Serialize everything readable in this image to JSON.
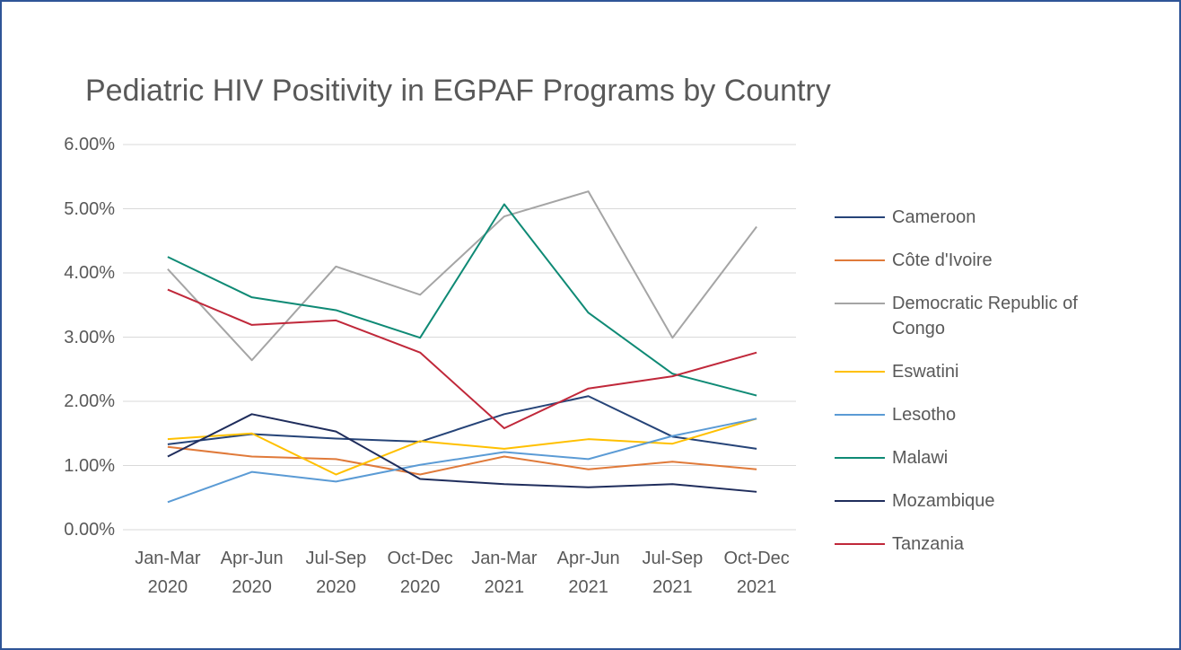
{
  "chart_data": {
    "type": "line",
    "title": "Pediatric HIV Positivity in EGPAF Programs by Country",
    "categories": [
      "Jan-Mar 2020",
      "Apr-Jun 2020",
      "Jul-Sep 2020",
      "Oct-Dec 2020",
      "Jan-Mar 2021",
      "Apr-Jun 2021",
      "Jul-Sep 2021",
      "Oct-Dec 2021"
    ],
    "series": [
      {
        "name": "Cameroon",
        "color": "#264478",
        "values": [
          1.33,
          1.49,
          1.42,
          1.37,
          1.8,
          2.08,
          1.45,
          1.26
        ]
      },
      {
        "name": "Côte d'Ivoire",
        "color": "#e07a3a",
        "values": [
          1.29,
          1.14,
          1.1,
          0.86,
          1.14,
          0.94,
          1.06,
          0.94
        ]
      },
      {
        "name": "Democratic Republic of Congo",
        "color": "#a5a5a5",
        "values": [
          4.06,
          2.64,
          4.1,
          3.66,
          4.88,
          5.27,
          2.99,
          4.72
        ]
      },
      {
        "name": "Eswatini",
        "color": "#ffc000",
        "values": [
          1.41,
          1.5,
          0.86,
          1.38,
          1.26,
          1.41,
          1.34,
          1.73
        ]
      },
      {
        "name": "Lesotho",
        "color": "#5b9bd5",
        "values": [
          0.43,
          0.9,
          0.75,
          1.01,
          1.21,
          1.1,
          1.46,
          1.73
        ]
      },
      {
        "name": "Malawi",
        "color": "#0f8a75",
        "values": [
          4.25,
          3.62,
          3.42,
          2.99,
          5.07,
          3.38,
          2.43,
          2.09
        ]
      },
      {
        "name": "Mozambique",
        "color": "#1f2d5c",
        "values": [
          1.14,
          1.8,
          1.53,
          0.79,
          0.71,
          0.66,
          0.71,
          0.59
        ]
      },
      {
        "name": "Tanzania",
        "color": "#c0283a",
        "values": [
          3.74,
          3.19,
          3.26,
          2.76,
          1.58,
          2.2,
          2.39,
          2.76
        ]
      }
    ],
    "ylim": [
      0,
      6
    ],
    "yticks": [
      {
        "value": 0,
        "label": "0.00%"
      },
      {
        "value": 1,
        "label": "1.00%"
      },
      {
        "value": 2,
        "label": "2.00%"
      },
      {
        "value": 3,
        "label": "3.00%"
      },
      {
        "value": 4,
        "label": "4.00%"
      },
      {
        "value": 5,
        "label": "5.00%"
      },
      {
        "value": 6,
        "label": "6.00%"
      }
    ],
    "grid": true,
    "legend": "right"
  }
}
